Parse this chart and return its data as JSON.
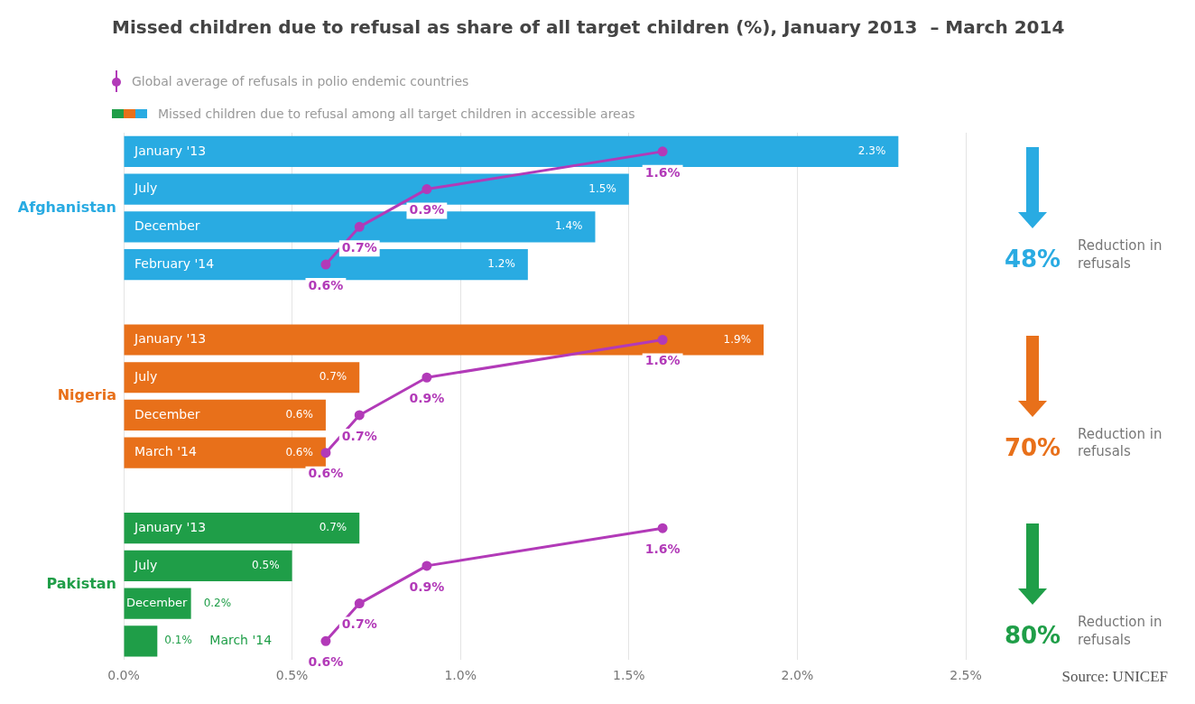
{
  "chart_data": {
    "type": "bar",
    "orientation": "horizontal",
    "title": "Missed children due to refusal as share of all target children (%), January 2013  – March 2014",
    "categories": [
      "January '13",
      "July",
      "December",
      "February '14",
      null,
      "January '13",
      "July",
      "December",
      "March '14",
      null,
      "January '13",
      "July",
      "December",
      "March '14"
    ],
    "series": [
      {
        "name": "Afghanistan",
        "color": "#29abe2",
        "values": [
          2.3,
          1.5,
          1.4,
          1.2,
          null,
          null,
          null,
          null,
          null,
          null,
          null,
          null,
          null,
          null
        ],
        "value_labels": [
          "2.3%",
          "1.5%",
          "1.4%",
          "1.2%",
          null,
          null,
          null,
          null,
          null,
          null,
          null,
          null,
          null,
          null
        ]
      },
      {
        "name": "Nigeria",
        "color": "#e8701a",
        "values": [
          null,
          null,
          null,
          null,
          null,
          1.9,
          0.7,
          0.6,
          0.6,
          null,
          null,
          null,
          null,
          null
        ],
        "value_labels": [
          null,
          null,
          null,
          null,
          null,
          "1.9%",
          "0.7%",
          "0.6%",
          "0.6%",
          null,
          null,
          null,
          null,
          null
        ]
      },
      {
        "name": "Pakistan",
        "color": "#1f9e48",
        "values": [
          null,
          null,
          null,
          null,
          null,
          null,
          null,
          null,
          null,
          null,
          0.7,
          0.5,
          0.2,
          0.1
        ],
        "value_labels": [
          null,
          null,
          null,
          null,
          null,
          null,
          null,
          null,
          null,
          null,
          "0.7%",
          "0.5%",
          "0.2%",
          "0.1%"
        ]
      },
      {
        "name": "Global average of refusals in polio endemic countries",
        "type": "line",
        "color": "#b23ab8",
        "values": [
          1.6,
          0.9,
          0.7,
          0.6,
          null,
          1.6,
          0.9,
          0.7,
          0.6,
          null,
          1.6,
          0.9,
          0.7,
          0.6
        ],
        "value_labels": [
          "1.6%",
          "0.9%",
          "0.7%",
          "0.6%",
          null,
          "1.6%",
          "0.9%",
          "0.7%",
          "0.6%",
          null,
          "1.6%",
          "0.9%",
          "0.7%",
          "0.6%"
        ]
      }
    ],
    "xlim": [
      0,
      2.5
    ],
    "xticks": [
      {
        "value": 0,
        "label": "0.0%"
      },
      {
        "value": 0.5,
        "label": "0.5%"
      },
      {
        "value": 1,
        "label": "1.0%"
      },
      {
        "value": 1.5,
        "label": "1.5%"
      },
      {
        "value": 2,
        "label": "2.0%"
      },
      {
        "value": 2.5,
        "label": "2.5%"
      }
    ],
    "grid": "x",
    "legend": "top left",
    "marker": "circle",
    "annotations": [
      "Missed children due to refusal among all target children in accessible areas",
      "48%",
      "Reduction in refusals",
      "70%",
      "Reduction in refusals",
      "80%",
      "Reduction in refusals",
      "Source: UNICEF"
    ]
  }
}
